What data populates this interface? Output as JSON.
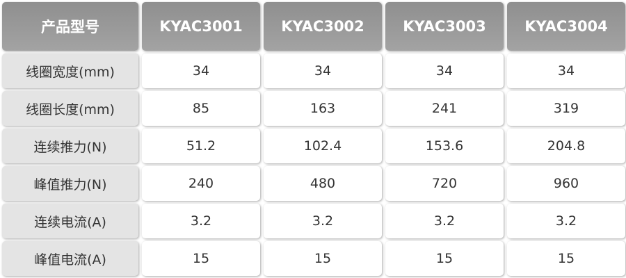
{
  "table": {
    "header": [
      "产品型号",
      "KYAC3001",
      "KYAC3002",
      "KYAC3003",
      "KYAC3004"
    ],
    "rows": [
      [
        "线圈宽度(mm)",
        "34",
        "34",
        "34",
        "34"
      ],
      [
        "线圈长度(mm)",
        "85",
        "163",
        "241",
        "319"
      ],
      [
        "连续推力(N)",
        "51.2",
        "102.4",
        "153.6",
        "204.8"
      ],
      [
        "峰值推力(N)",
        "240",
        "480",
        "720",
        "960"
      ],
      [
        "连续电流(A)",
        "3.2",
        "3.2",
        "3.2",
        "3.2"
      ],
      [
        "峰值电流(A)",
        "15",
        "15",
        "15",
        "15"
      ]
    ]
  }
}
